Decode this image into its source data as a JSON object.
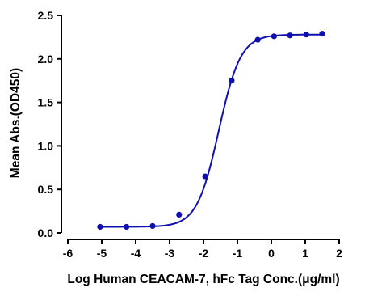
{
  "chart_data": {
    "type": "scatter",
    "title": "",
    "xlabel": "Log Human CEACAM-7, hFc Tag Conc.(μg/ml)",
    "ylabel": "Mean Abs.(OD450)",
    "xlim": [
      -6,
      2
    ],
    "ylim": [
      0,
      2.5
    ],
    "x_ticks": [
      "-6",
      "-5",
      "-4",
      "-3",
      "-2",
      "-1",
      "0",
      "1",
      "2"
    ],
    "y_ticks": [
      "0.0",
      "0.5",
      "1.0",
      "1.5",
      "2.0",
      "2.5"
    ],
    "grid": false,
    "legend": "none",
    "series": [
      {
        "x": [
          -5.05,
          -4.27,
          -3.5,
          -2.72,
          -1.95,
          -1.17,
          -0.4,
          0.08,
          0.55,
          1.03,
          1.5
        ],
        "y": [
          0.07,
          0.07,
          0.08,
          0.21,
          0.65,
          1.75,
          2.22,
          2.26,
          2.27,
          2.28,
          2.29
        ],
        "fit": {
          "model": "4PL sigmoid",
          "bottom": 0.07,
          "top": 2.28,
          "logEC50": -1.55,
          "hill": 1.35
        }
      }
    ],
    "colors": {
      "series": "#1010b0",
      "axis": "#000000"
    }
  }
}
